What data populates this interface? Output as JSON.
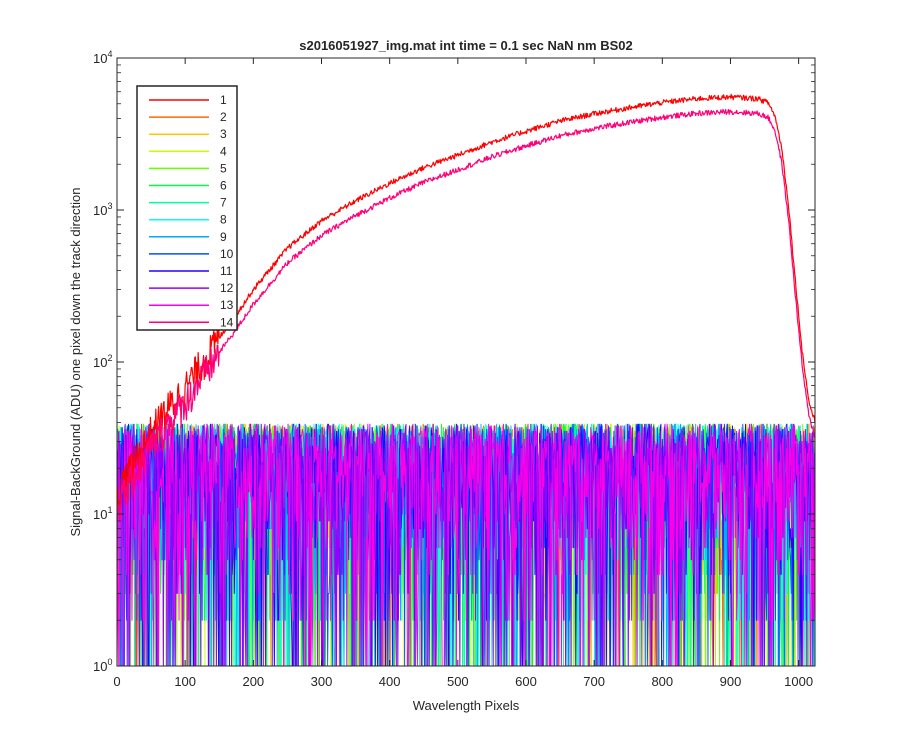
{
  "chart_data": {
    "type": "line",
    "title": "s2016051927_img.mat int time = 0.1 sec  NaN nm BS02",
    "xlabel": "Wavelength Pixels",
    "ylabel": "Signal-BackGround (ADU) one pixel down the track direction",
    "xlim": [
      0,
      1024
    ],
    "ylim": [
      1,
      10000
    ],
    "yscale": "log",
    "grid": false,
    "legend_position": "top-left",
    "x_ticks": [
      "0",
      "100",
      "200",
      "300",
      "400",
      "500",
      "600",
      "700",
      "800",
      "900",
      "1000"
    ],
    "y_ticks": [
      {
        "base": "10",
        "exp": "0"
      },
      {
        "base": "10",
        "exp": "1"
      },
      {
        "base": "10",
        "exp": "2"
      },
      {
        "base": "10",
        "exp": "3"
      },
      {
        "base": "10",
        "exp": "4"
      }
    ],
    "signal_profile": {
      "x": [
        0,
        25,
        50,
        75,
        100,
        125,
        150,
        175,
        200,
        250,
        300,
        350,
        400,
        450,
        500,
        550,
        600,
        650,
        700,
        750,
        800,
        850,
        900,
        940,
        955,
        965,
        975,
        985,
        995,
        1005,
        1015,
        1024
      ],
      "y": [
        14,
        22,
        35,
        50,
        68,
        100,
        145,
        205,
        300,
        560,
        850,
        1150,
        1500,
        1900,
        2300,
        2800,
        3300,
        3850,
        4300,
        4700,
        5100,
        5400,
        5550,
        5400,
        5100,
        4200,
        2600,
        1100,
        350,
        120,
        55,
        40
      ]
    },
    "series": [
      {
        "name": "1",
        "color": "#ff0000",
        "type": "signal",
        "scale": 1.0
      },
      {
        "name": "2",
        "color": "#ff6a00",
        "type": "noise"
      },
      {
        "name": "3",
        "color": "#ffc800",
        "type": "noise"
      },
      {
        "name": "4",
        "color": "#c8ff00",
        "type": "noise"
      },
      {
        "name": "5",
        "color": "#6aff00",
        "type": "noise"
      },
      {
        "name": "6",
        "color": "#00ff3c",
        "type": "noise"
      },
      {
        "name": "7",
        "color": "#00ff9e",
        "type": "noise"
      },
      {
        "name": "8",
        "color": "#00fff0",
        "type": "noise"
      },
      {
        "name": "9",
        "color": "#00aaff",
        "type": "noise"
      },
      {
        "name": "10",
        "color": "#0050ff",
        "type": "noise"
      },
      {
        "name": "11",
        "color": "#2800ff",
        "type": "noise"
      },
      {
        "name": "12",
        "color": "#9600ff",
        "type": "noise"
      },
      {
        "name": "13",
        "color": "#ff00e6",
        "type": "noise"
      },
      {
        "name": "14",
        "color": "#ff0078",
        "type": "signal",
        "scale": 0.8
      }
    ],
    "noise_range": [
      1,
      40
    ]
  }
}
